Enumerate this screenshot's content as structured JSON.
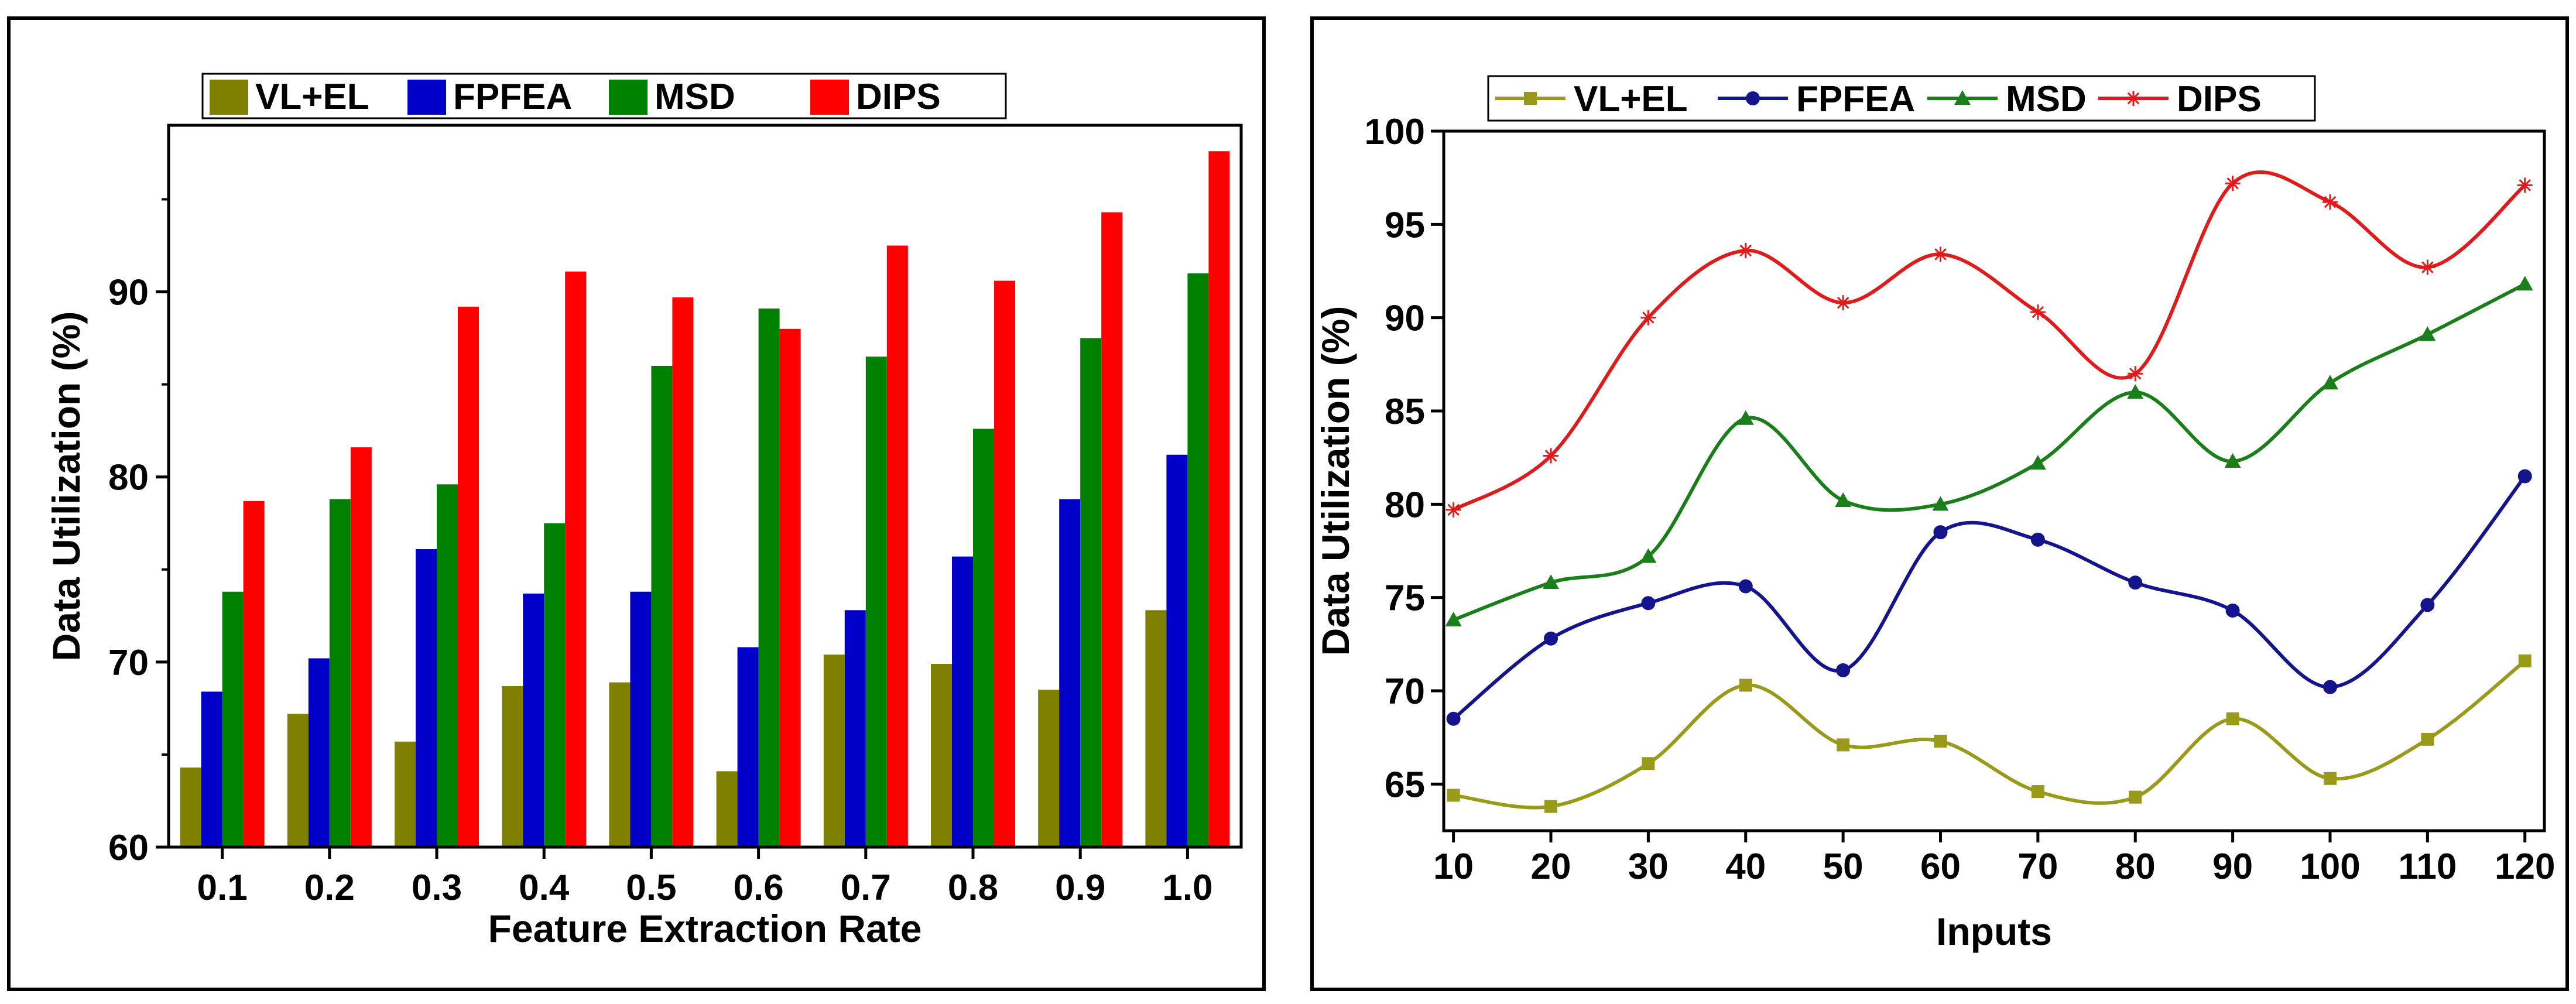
{
  "chart_data": [
    {
      "type": "bar",
      "title": "",
      "xlabel": "Feature Extraction Rate",
      "ylabel": "Data Utilization (%)",
      "ylim": [
        60,
        99
      ],
      "yticks": [
        60,
        70,
        80,
        90
      ],
      "categories": [
        "0.1",
        "0.2",
        "0.3",
        "0.4",
        "0.5",
        "0.6",
        "0.7",
        "0.8",
        "0.9",
        "1.0"
      ],
      "series": [
        {
          "name": "VL+EL",
          "color": "#808000",
          "values": [
            64.3,
            67.2,
            65.7,
            68.7,
            68.9,
            64.1,
            70.4,
            69.9,
            68.5,
            72.8
          ]
        },
        {
          "name": "FPFEA",
          "color": "#0000c8",
          "values": [
            68.4,
            70.2,
            76.1,
            73.7,
            73.8,
            70.8,
            72.8,
            75.7,
            78.8,
            81.2
          ]
        },
        {
          "name": "MSD",
          "color": "#008000",
          "values": [
            73.8,
            78.8,
            79.6,
            77.5,
            86.0,
            89.1,
            86.5,
            82.6,
            87.5,
            91.0
          ]
        },
        {
          "name": "DIPS",
          "color": "#ff0000",
          "values": [
            78.7,
            81.6,
            89.2,
            91.1,
            89.7,
            88.0,
            92.5,
            90.6,
            94.3,
            97.6
          ]
        }
      ],
      "legend": "top-left"
    },
    {
      "type": "line",
      "title": "",
      "xlabel": "Inputs",
      "ylabel": "Data Utilization (%)",
      "ylim": [
        62.5,
        100
      ],
      "yticks": [
        65,
        70,
        75,
        80,
        85,
        90,
        95,
        100
      ],
      "xlim": [
        9,
        122
      ],
      "x": [
        10,
        20,
        30,
        40,
        50,
        60,
        70,
        80,
        90,
        100,
        110,
        120
      ],
      "xtick_labels": [
        "10",
        "20",
        "30",
        "40",
        "50",
        "60",
        "70",
        "80",
        "90",
        "100",
        "110",
        "120"
      ],
      "series": [
        {
          "name": "VL+EL",
          "color": "#9a9a1a",
          "marker": "square",
          "values": [
            64.4,
            63.8,
            66.1,
            70.3,
            67.1,
            67.3,
            64.6,
            64.3,
            68.5,
            65.3,
            67.4,
            71.6
          ]
        },
        {
          "name": "FPFEA",
          "color": "#14148c",
          "marker": "circle",
          "values": [
            68.5,
            72.8,
            74.7,
            75.6,
            71.1,
            78.5,
            78.1,
            75.8,
            74.3,
            70.2,
            74.6,
            81.5
          ]
        },
        {
          "name": "MSD",
          "color": "#1a7f1a",
          "marker": "triangle",
          "values": [
            73.8,
            75.8,
            77.2,
            84.6,
            80.2,
            80.0,
            82.2,
            86.0,
            82.3,
            86.5,
            89.1,
            91.8
          ]
        },
        {
          "name": "DIPS",
          "color": "#e01b1b",
          "marker": "star",
          "values": [
            79.7,
            82.6,
            90.0,
            93.6,
            90.8,
            93.4,
            90.3,
            87.0,
            97.2,
            96.2,
            92.7,
            97.1
          ]
        }
      ],
      "legend": "top-left"
    }
  ]
}
